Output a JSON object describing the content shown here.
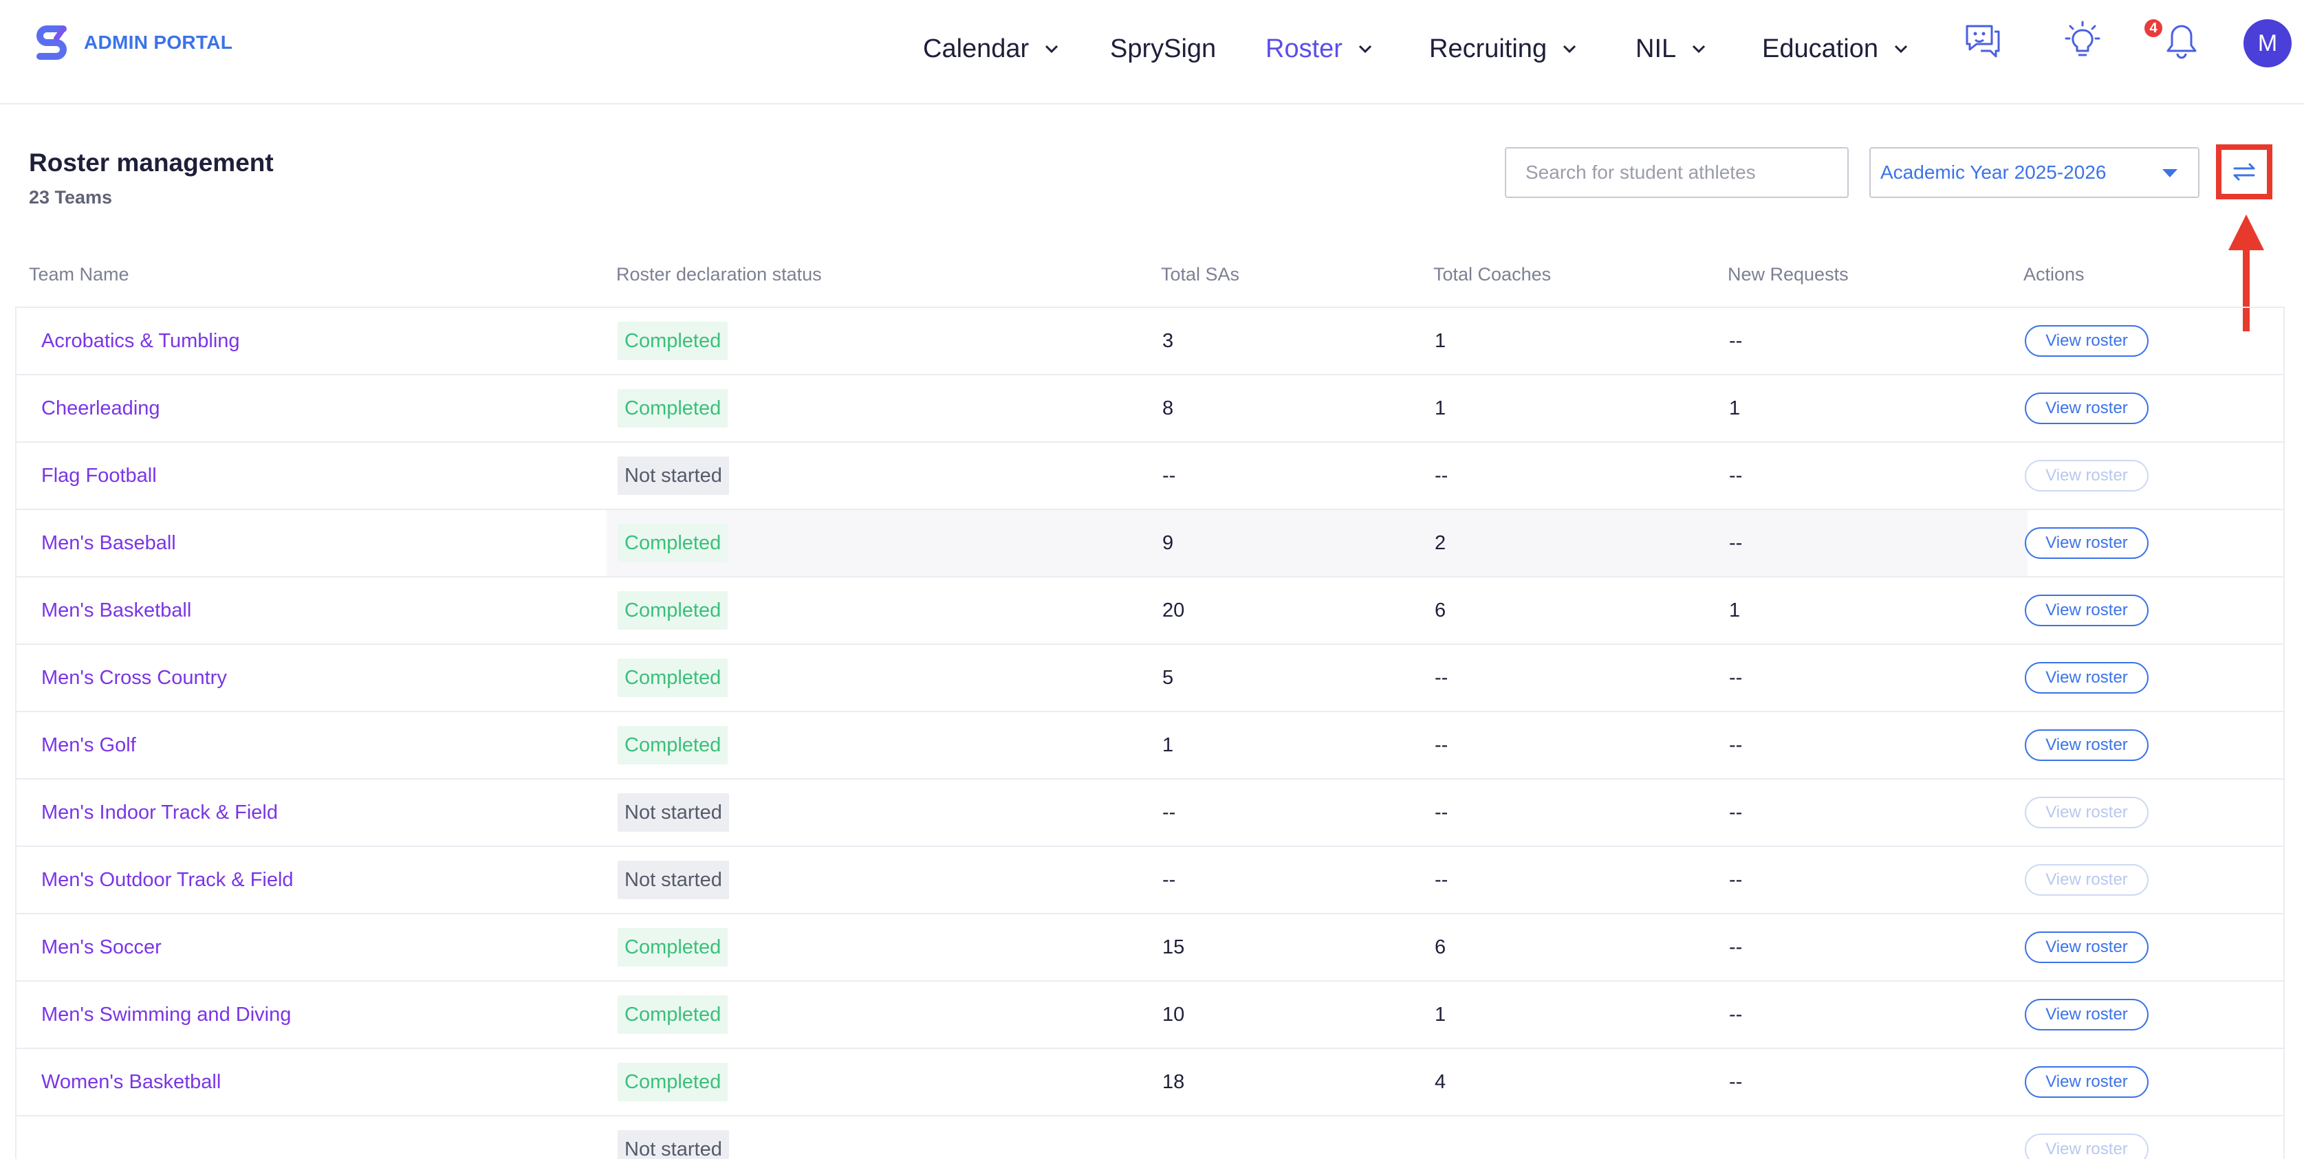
{
  "header": {
    "brand": "ADMIN PORTAL",
    "nav": [
      {
        "label": "Calendar",
        "dropdown": true,
        "active": false
      },
      {
        "label": "SprySign",
        "dropdown": false,
        "active": false
      },
      {
        "label": "Roster",
        "dropdown": true,
        "active": true
      },
      {
        "label": "Recruiting",
        "dropdown": true,
        "active": false
      },
      {
        "label": "NIL",
        "dropdown": true,
        "active": false
      },
      {
        "label": "Education",
        "dropdown": true,
        "active": false
      }
    ],
    "icons": [
      "chat-icon",
      "lightbulb-icon",
      "bell-icon"
    ],
    "notification_count": "4",
    "avatar_initial": "M"
  },
  "page": {
    "title": "Roster management",
    "subtitle": "23 Teams",
    "search_placeholder": "Search for student athletes",
    "year_select": "Academic Year 2025-2026"
  },
  "table": {
    "columns": [
      "Team Name",
      "Roster declaration status",
      "Total SAs",
      "Total Coaches",
      "New Requests",
      "Actions"
    ],
    "action_label": "View roster",
    "rows": [
      {
        "team": "Acrobatics & Tumbling",
        "status": "Completed",
        "sas": "3",
        "coaches": "1",
        "requests": "--"
      },
      {
        "team": "Cheerleading",
        "status": "Completed",
        "sas": "8",
        "coaches": "1",
        "requests": "1"
      },
      {
        "team": "Flag Football",
        "status": "Not started",
        "sas": "--",
        "coaches": "--",
        "requests": "--"
      },
      {
        "team": "Men's Baseball",
        "status": "Completed",
        "sas": "9",
        "coaches": "2",
        "requests": "--"
      },
      {
        "team": "Men's Basketball",
        "status": "Completed",
        "sas": "20",
        "coaches": "6",
        "requests": "1"
      },
      {
        "team": "Men's Cross Country",
        "status": "Completed",
        "sas": "5",
        "coaches": "--",
        "requests": "--"
      },
      {
        "team": "Men's Golf",
        "status": "Completed",
        "sas": "1",
        "coaches": "--",
        "requests": "--"
      },
      {
        "team": "Men's Indoor Track & Field",
        "status": "Not started",
        "sas": "--",
        "coaches": "--",
        "requests": "--"
      },
      {
        "team": "Men's Outdoor Track & Field",
        "status": "Not started",
        "sas": "--",
        "coaches": "--",
        "requests": "--"
      },
      {
        "team": "Men's Soccer",
        "status": "Completed",
        "sas": "15",
        "coaches": "6",
        "requests": "--"
      },
      {
        "team": "Men's Swimming and Diving",
        "status": "Completed",
        "sas": "10",
        "coaches": "1",
        "requests": "--"
      },
      {
        "team": "Women's Basketball",
        "status": "Completed",
        "sas": "18",
        "coaches": "4",
        "requests": "--"
      },
      {
        "team": "",
        "status": "Not started",
        "sas": "",
        "coaches": "",
        "requests": ""
      }
    ]
  },
  "colors": {
    "accent": "#3b73e8",
    "link": "#7a35e6",
    "completed": "#3bbf7a",
    "annotation": "#e8392d"
  }
}
